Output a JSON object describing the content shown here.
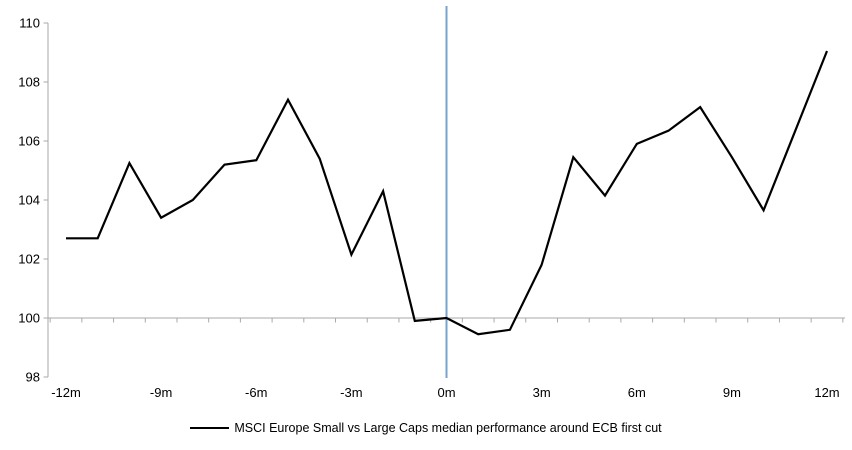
{
  "chart": {
    "legend": {
      "label": "MSCI Europe Small vs Large Caps median performance around ECB first cut"
    },
    "colors": {
      "series": "#000000",
      "event_line": "#77A4CD",
      "axis_gray": "#A9A9A9",
      "label_text": "#000000",
      "background": "#FFFFFF"
    }
  },
  "chart_data": {
    "type": "line",
    "title": "",
    "xlabel": "",
    "ylabel": "",
    "x_months": [
      -12,
      -11,
      -10,
      -9,
      -8,
      -7,
      -6,
      -5,
      -4,
      -3,
      -2,
      -1,
      0,
      1,
      2,
      3,
      4,
      5,
      6,
      7,
      8,
      9,
      10,
      11,
      12
    ],
    "x_tick_label_months": [
      -12,
      -9,
      -6,
      -3,
      0,
      3,
      6,
      9,
      12
    ],
    "x_tick_labels": [
      "-12m",
      "-9m",
      "-6m",
      "-3m",
      "0m",
      "3m",
      "6m",
      "9m",
      "12m"
    ],
    "y_tick_labels": [
      "98",
      "100",
      "102",
      "104",
      "106",
      "108",
      "110"
    ],
    "y_tick_values": [
      98,
      100,
      102,
      104,
      106,
      108,
      110
    ],
    "ylim": [
      98,
      110
    ],
    "baseline_value": 100,
    "event_line_x": 0,
    "grid": "baseline-only",
    "legend_position": "bottom-center",
    "series": [
      {
        "name": "MSCI Europe Small vs Large Caps median performance around ECB first cut",
        "color": "#000000",
        "values": [
          102.7,
          102.7,
          105.25,
          103.4,
          104.0,
          105.2,
          105.35,
          107.4,
          105.4,
          102.15,
          104.3,
          99.9,
          100.0,
          99.45,
          99.6,
          101.8,
          105.45,
          104.15,
          105.9,
          106.35,
          107.15,
          105.45,
          103.65,
          106.35,
          109.05
        ]
      }
    ]
  }
}
